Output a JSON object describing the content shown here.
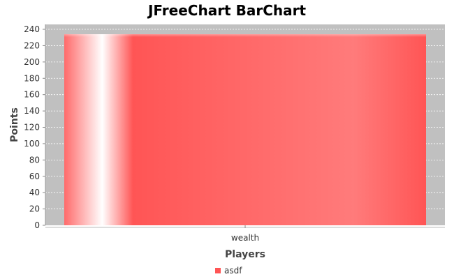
{
  "chart_data": {
    "type": "bar",
    "title": "JFreeChart BarChart",
    "xlabel": "Players",
    "ylabel": "Points",
    "categories": [
      "wealth"
    ],
    "series": [
      {
        "name": "asdf",
        "values": [
          234
        ],
        "color": "#ff5555"
      }
    ],
    "ylim": [
      0,
      246
    ],
    "yticks": [
      0,
      20,
      40,
      60,
      80,
      100,
      120,
      140,
      160,
      180,
      200,
      220,
      240
    ],
    "grid": true,
    "legend_position": "bottom",
    "plot_background": "#c0c0c0"
  }
}
